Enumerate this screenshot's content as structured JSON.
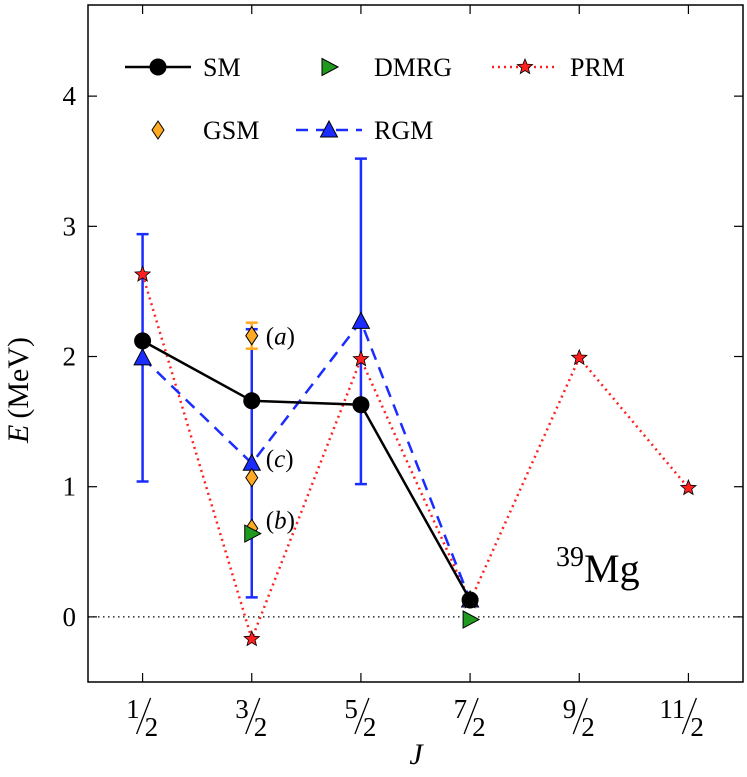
{
  "chart_data": {
    "type": "line",
    "xlabel": "J",
    "ylabel_var": "E",
    "ylabel_unit": "(MeV)",
    "x_tick_labels": [
      {
        "x": 1,
        "num": "1",
        "den": "2"
      },
      {
        "x": 3,
        "num": "3",
        "den": "2"
      },
      {
        "x": 5,
        "num": "5",
        "den": "2"
      },
      {
        "x": 7,
        "num": "7",
        "den": "2"
      },
      {
        "x": 9,
        "num": "9",
        "den": "2"
      },
      {
        "x": 11,
        "num": "11",
        "den": "2"
      }
    ],
    "xlim": [
      0,
      12
    ],
    "ylim": [
      -0.5,
      4.7
    ],
    "y_ticks": [
      0,
      1,
      2,
      3,
      4
    ],
    "reference_line": {
      "y": 0,
      "style": "dotted"
    },
    "nucleus_label": {
      "mass": "39",
      "element": "Mg"
    },
    "legend": {
      "placement": "top"
    },
    "series": [
      {
        "name": "SM",
        "color": "#000000",
        "line": "solid",
        "marker": "circle",
        "points": [
          {
            "x": 1,
            "y": 2.12
          },
          {
            "x": 3,
            "y": 1.66
          },
          {
            "x": 5,
            "y": 1.63
          },
          {
            "x": 7,
            "y": 0.13
          }
        ]
      },
      {
        "name": "DMRG",
        "color": "#1f9a1f",
        "line": "none",
        "marker": "triangle-right",
        "points": [
          {
            "x": 3,
            "y": 0.64
          },
          {
            "x": 7,
            "y": -0.02
          }
        ]
      },
      {
        "name": "PRM",
        "color": "#ff2020",
        "line": "dotted",
        "marker": "star",
        "points": [
          {
            "x": 1,
            "y": 2.63
          },
          {
            "x": 3,
            "y": -0.17
          },
          {
            "x": 5,
            "y": 1.98
          },
          {
            "x": 7,
            "y": 0.12
          },
          {
            "x": 9,
            "y": 1.99
          },
          {
            "x": 11,
            "y": 0.99
          }
        ]
      },
      {
        "name": "GSM",
        "color": "#ffaa22",
        "line": "none",
        "marker": "diamond",
        "points": [
          {
            "x": 3,
            "y": 2.16,
            "err": 0.1
          },
          {
            "x": 3,
            "y": 1.07,
            "err": 0.0
          },
          {
            "x": 3,
            "y": 0.68,
            "err": 0.0
          }
        ]
      },
      {
        "name": "RGM",
        "color": "#1a2cff",
        "line": "dashed",
        "marker": "triangle-up",
        "points": [
          {
            "x": 1,
            "y": 1.99,
            "err": 0.95
          },
          {
            "x": 3,
            "y": 1.18,
            "err": 1.03
          },
          {
            "x": 5,
            "y": 2.27,
            "err": 1.25
          },
          {
            "x": 7,
            "y": 0.13,
            "err": 0.0
          }
        ]
      }
    ],
    "annotations": [
      {
        "text": "(a)",
        "x": 3,
        "y": 2.16
      },
      {
        "text": "(c)",
        "x": 3,
        "y": 1.22
      },
      {
        "text": "(b)",
        "x": 3,
        "y": 0.75
      }
    ]
  }
}
